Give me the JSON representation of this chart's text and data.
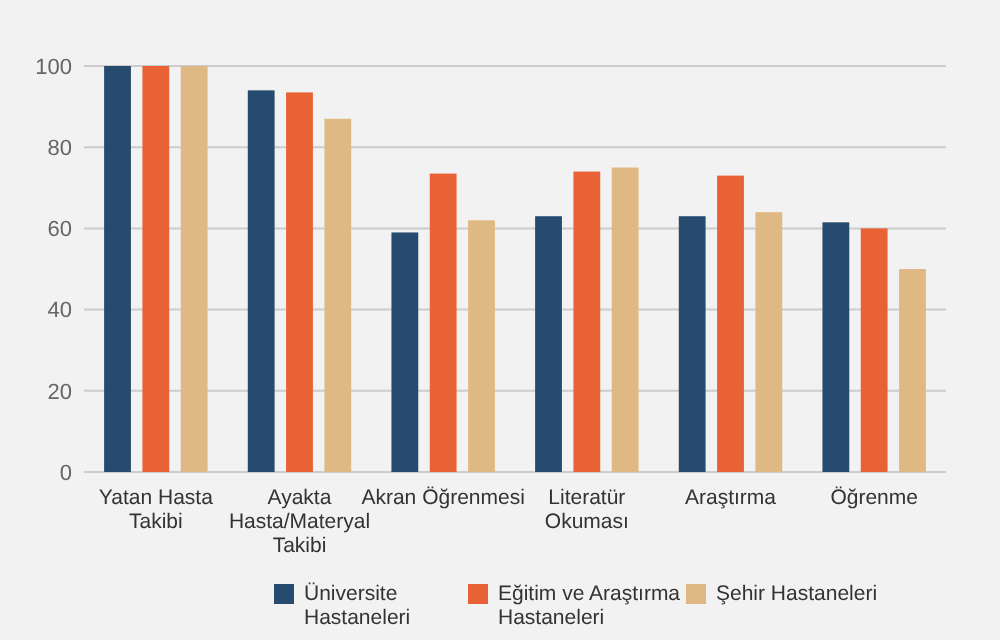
{
  "chart_data": {
    "type": "bar",
    "categories": [
      "Yatan Hasta Takibi",
      "Ayakta Hasta/Materyal Takibi",
      "Akran Öğrenmesi",
      "Literatür Okuması",
      "Araştırma",
      "Öğrenme"
    ],
    "series": [
      {
        "name": "Üniversite Hastaneleri",
        "color": "#264b6e",
        "values": [
          100,
          94,
          59,
          63,
          63,
          61.5
        ]
      },
      {
        "name": "Eğitim ve Araştırma Hastaneleri",
        "color": "#e86236",
        "values": [
          100,
          93.5,
          73.5,
          74,
          73,
          60
        ]
      },
      {
        "name": "Şehir Hastaneleri",
        "color": "#dfb984",
        "values": [
          100,
          87,
          62,
          75,
          64,
          50
        ]
      }
    ],
    "ylim": [
      0,
      100
    ],
    "yticks": [
      0,
      20,
      40,
      60,
      80,
      100
    ],
    "grid": "y",
    "legend": "bottom"
  }
}
